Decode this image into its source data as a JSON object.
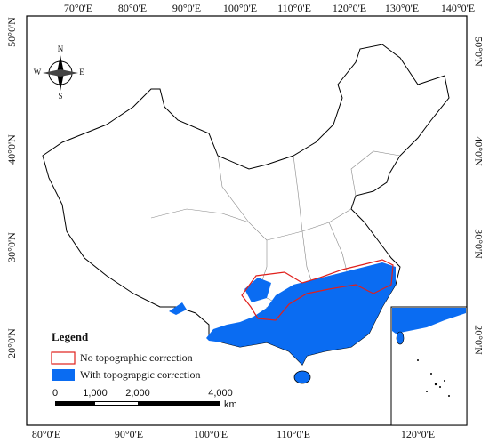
{
  "top_axis": [
    "70°0'E",
    "80°0'E",
    "90°0'E",
    "100°0'E",
    "110°0'E",
    "120°0'E",
    "130°0'E",
    "140°0'E"
  ],
  "bottom_axis": [
    "80°0'E",
    "90°0'E",
    "100°0'E",
    "110°0'E",
    "120°0'E"
  ],
  "left_axis": [
    "50°0'N",
    "40°0'N",
    "30°0'N",
    "20°0'N"
  ],
  "right_axis": [
    "50°0'N",
    "40°0'N",
    "30°0'N",
    "20°0'N"
  ],
  "compass": {
    "north": "N",
    "south": "S",
    "west": "W",
    "east": "E"
  },
  "legend": {
    "title": "Legend",
    "items": [
      "No topographic correction",
      "With topograpgic correction"
    ]
  },
  "scale_bar": {
    "labels": [
      "0",
      "1,000",
      "2,000",
      "4,000"
    ],
    "unit": "km"
  }
}
